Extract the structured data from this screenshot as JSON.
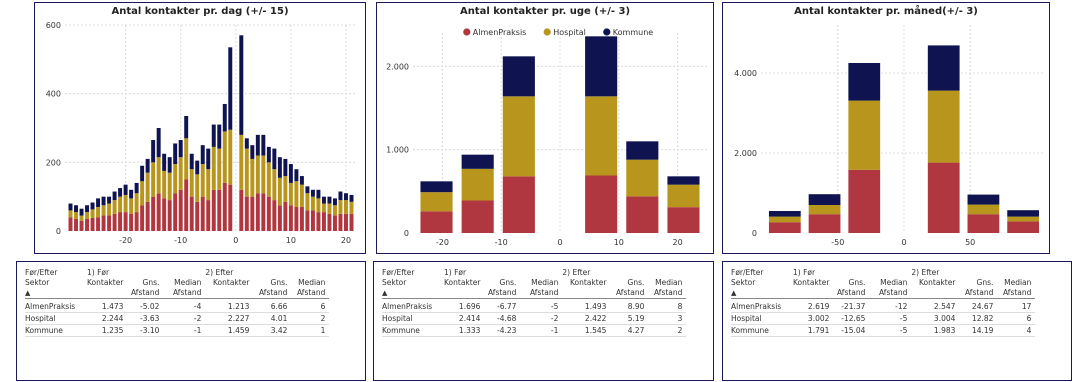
{
  "colors": {
    "AlmenPraksis": "#b0373f",
    "Hospital": "#b8961d",
    "Kommune": "#0f1450",
    "grid": "#dcdcdc",
    "axis_text": "#333333"
  },
  "chart_data": [
    {
      "type": "bar",
      "stacked": true,
      "title": "Antal kontakter pr. dag (+/- 15)",
      "xlabel": "",
      "ylabel": "",
      "x": [
        -30,
        -29,
        -28,
        -27,
        -26,
        -25,
        -24,
        -23,
        -22,
        -21,
        -20,
        -19,
        -18,
        -17,
        -16,
        -15,
        -14,
        -13,
        -12,
        -11,
        -10,
        -9,
        -8,
        -7,
        -6,
        -5,
        -4,
        -3,
        -2,
        -1,
        1,
        2,
        3,
        4,
        5,
        6,
        7,
        8,
        9,
        10,
        11,
        12,
        13,
        14,
        15,
        16,
        17,
        18,
        19,
        20,
        21
      ],
      "xlim": [
        -31,
        22
      ],
      "ylim": [
        0,
        600
      ],
      "xticks": [
        -20,
        -10,
        0,
        10,
        20
      ],
      "yticks": [
        0,
        200,
        400,
        600
      ],
      "legend": "none",
      "series": [
        {
          "name": "AlmenPraksis",
          "values": [
            40,
            35,
            30,
            35,
            38,
            40,
            45,
            45,
            50,
            55,
            55,
            50,
            55,
            75,
            85,
            100,
            110,
            95,
            90,
            110,
            120,
            150,
            100,
            85,
            100,
            90,
            120,
            120,
            140,
            135,
            120,
            100,
            100,
            110,
            110,
            100,
            90,
            75,
            85,
            75,
            70,
            70,
            60,
            60,
            55,
            55,
            50,
            45,
            50,
            50,
            50
          ]
        },
        {
          "name": "Hospital",
          "values": [
            20,
            20,
            15,
            20,
            25,
            30,
            30,
            35,
            40,
            45,
            50,
            45,
            55,
            70,
            85,
            100,
            105,
            80,
            80,
            85,
            95,
            120,
            80,
            80,
            95,
            90,
            125,
            120,
            150,
            160,
            160,
            140,
            110,
            110,
            110,
            100,
            90,
            80,
            75,
            65,
            75,
            65,
            50,
            40,
            40,
            25,
            30,
            30,
            40,
            40,
            35
          ]
        },
        {
          "name": "Kommune",
          "values": [
            20,
            20,
            20,
            20,
            20,
            25,
            25,
            20,
            25,
            25,
            30,
            25,
            30,
            45,
            40,
            65,
            85,
            50,
            45,
            60,
            50,
            65,
            45,
            40,
            55,
            60,
            65,
            70,
            80,
            240,
            290,
            30,
            40,
            60,
            60,
            45,
            60,
            60,
            50,
            55,
            35,
            25,
            20,
            20,
            25,
            20,
            20,
            20,
            25,
            20,
            20
          ]
        }
      ]
    },
    {
      "type": "bar",
      "stacked": true,
      "title": "Antal kontakter pr. uge (+/- 3)",
      "xlabel": "",
      "ylabel": "",
      "x": [
        -21,
        -14,
        -7,
        7,
        14,
        21
      ],
      "xlim": [
        -25,
        25
      ],
      "ylim": [
        0,
        2400
      ],
      "xticks": [
        -20,
        -10,
        0,
        10,
        20
      ],
      "yticks": [
        0,
        1000,
        2000
      ],
      "ytick_labels": [
        "0",
        "1.000",
        "2.000"
      ],
      "legend": "top-center",
      "series": [
        {
          "name": "AlmenPraksis",
          "values": [
            260,
            390,
            680,
            690,
            440,
            310
          ]
        },
        {
          "name": "Hospital",
          "values": [
            230,
            380,
            960,
            950,
            440,
            270
          ]
        },
        {
          "name": "Kommune",
          "values": [
            130,
            170,
            480,
            720,
            220,
            100
          ]
        }
      ]
    },
    {
      "type": "bar",
      "stacked": true,
      "title": "Antal kontakter pr. måned(+/- 3)",
      "xlabel": "",
      "ylabel": "",
      "x": [
        -90,
        -60,
        -30,
        30,
        60,
        90
      ],
      "xlim": [
        -108,
        105
      ],
      "ylim": [
        0,
        5200
      ],
      "xticks": [
        -50,
        0,
        50
      ],
      "yticks": [
        0,
        2000,
        4000
      ],
      "ytick_labels": [
        "0",
        "2.000",
        "4.000"
      ],
      "legend": "none",
      "series": [
        {
          "name": "AlmenPraksis",
          "values": [
            270,
            470,
            1580,
            1760,
            470,
            290
          ]
        },
        {
          "name": "Hospital",
          "values": [
            140,
            230,
            1730,
            1800,
            240,
            120
          ]
        },
        {
          "name": "Kommune",
          "values": [
            140,
            270,
            940,
            1130,
            250,
            160
          ]
        }
      ]
    }
  ],
  "tables": [
    {
      "header_sector": [
        "Før/Efter",
        "Sektor"
      ],
      "header_before": "1) Før",
      "header_after": "2) Efter",
      "col_headers": [
        "Kontakter",
        "Gns. Afstand",
        "Median Afstand",
        "Kontakter",
        "Gns. Afstand",
        "Median Afstand"
      ],
      "sort_icon": "▲",
      "rows": [
        [
          "AlmenPraksis",
          "1.473",
          "-5.02",
          "-4",
          "1.213",
          "6.66",
          "6"
        ],
        [
          "Hospital",
          "2.244",
          "-3.63",
          "-2",
          "2.227",
          "4.01",
          "2"
        ],
        [
          "Kommune",
          "1.235",
          "-3.10",
          "-1",
          "1.459",
          "3.42",
          "1"
        ]
      ]
    },
    {
      "header_sector": [
        "Før/Efter",
        "Sektor"
      ],
      "header_before": "1) Før",
      "header_after": "2) Efter",
      "col_headers": [
        "Kontakter",
        "Gns. Afstand",
        "Median Afstand",
        "Kontakter",
        "Gns. Afstand",
        "Median Afstand"
      ],
      "sort_icon": "▲",
      "rows": [
        [
          "AlmenPraksis",
          "1.696",
          "-6.77",
          "-5",
          "1.493",
          "8.90",
          "8"
        ],
        [
          "Hospital",
          "2.414",
          "-4.68",
          "-2",
          "2.422",
          "5.19",
          "3"
        ],
        [
          "Kommune",
          "1.333",
          "-4.23",
          "-1",
          "1.545",
          "4.27",
          "2"
        ]
      ]
    },
    {
      "header_sector": [
        "Før/Efter",
        "Sektor"
      ],
      "header_before": "1) Før",
      "header_after": "2) Efter",
      "col_headers": [
        "Kontakter",
        "Gns. Afstand",
        "Median Afstand",
        "Kontakter",
        "Gns. Afstand",
        "Median Afstand"
      ],
      "sort_icon": "▲",
      "rows": [
        [
          "AlmenPraksis",
          "2.619",
          "-21.37",
          "-12",
          "2.547",
          "24.67",
          "17"
        ],
        [
          "Hospital",
          "3.002",
          "-12.65",
          "-5",
          "3.004",
          "12.82",
          "6"
        ],
        [
          "Kommune",
          "1.791",
          "-15.04",
          "-5",
          "1.983",
          "14.19",
          "4"
        ]
      ]
    }
  ]
}
